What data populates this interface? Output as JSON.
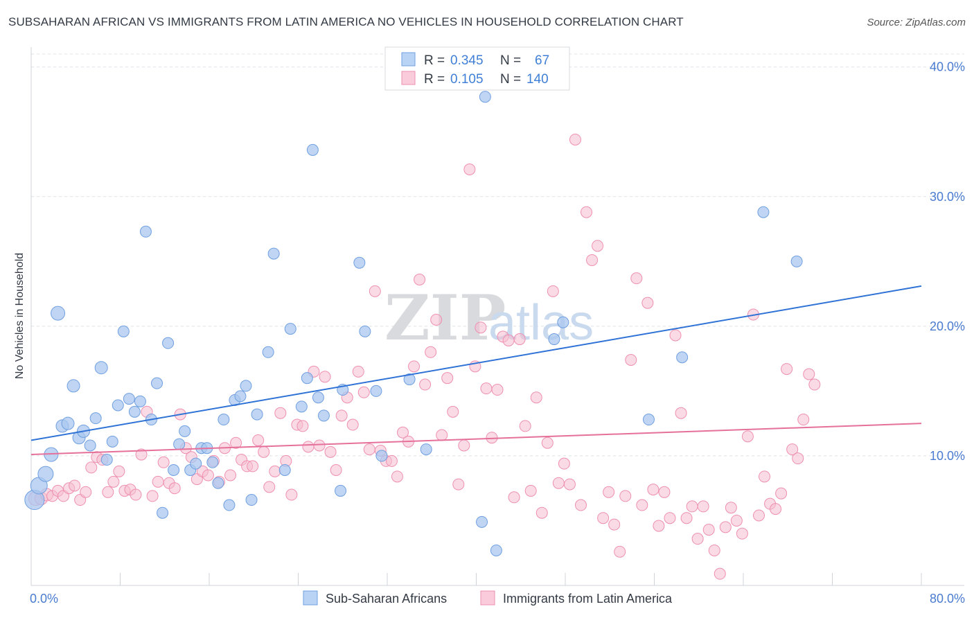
{
  "title": "SUBSAHARAN AFRICAN VS IMMIGRANTS FROM LATIN AMERICA NO VEHICLES IN HOUSEHOLD CORRELATION CHART",
  "source": "Source: ZipAtlas.com",
  "watermark": {
    "zip": "ZIP",
    "atlas": "atlas"
  },
  "legend": {
    "rows": [
      {
        "r_label": "R =",
        "r_value": "0.345",
        "n_label": "N =",
        "n_value": "67"
      },
      {
        "r_label": "R =",
        "r_value": "0.105",
        "n_label": "N =",
        "n_value": "140"
      }
    ]
  },
  "colors": {
    "series1_fill": "#a9c7ef",
    "series1_stroke": "#6f9fe0",
    "series1_line": "#2f72d6",
    "series2_fill": "#f6bdd0",
    "series2_stroke": "#ee8fb0",
    "series2_line": "#e5709a",
    "axis_tick_text": "#4a7bd0",
    "grid": "#dde1e8"
  },
  "chart_data": {
    "type": "scatter",
    "title": "SUBSAHARAN AFRICAN VS IMMIGRANTS FROM LATIN AMERICA NO VEHICLES IN HOUSEHOLD CORRELATION CHART",
    "xlabel": "",
    "ylabel": "No Vehicles in Household",
    "xlim": [
      0,
      80
    ],
    "ylim": [
      0,
      41
    ],
    "x_tick_labels": [
      "0.0%",
      "80.0%"
    ],
    "y_ticks": [
      10,
      20,
      30,
      40
    ],
    "y_tick_labels": [
      "10.0%",
      "20.0%",
      "30.0%",
      "40.0%"
    ],
    "grid": true,
    "legend_position": "top-center",
    "series": [
      {
        "name": "Sub-Saharan Africans",
        "R": 0.345,
        "N": 67,
        "trend": {
          "x": [
            0,
            80
          ],
          "y": [
            11.2,
            23.1
          ]
        },
        "points": [
          [
            0.3,
            6.6,
            14
          ],
          [
            0.7,
            7.7,
            12
          ],
          [
            1.3,
            8.6,
            11
          ],
          [
            1.8,
            10.1,
            10
          ],
          [
            2.4,
            21.0,
            10
          ],
          [
            2.8,
            12.3,
            9
          ],
          [
            3.3,
            12.5,
            9
          ],
          [
            3.8,
            15.4,
            9
          ],
          [
            4.3,
            11.4,
            9
          ],
          [
            4.7,
            11.9,
            9
          ],
          [
            5.3,
            10.8,
            8
          ],
          [
            5.8,
            12.9,
            8
          ],
          [
            6.3,
            16.8,
            9
          ],
          [
            6.8,
            9.7,
            8
          ],
          [
            7.3,
            11.1,
            8
          ],
          [
            7.8,
            13.9,
            8
          ],
          [
            8.3,
            19.6,
            8
          ],
          [
            8.8,
            14.4,
            8
          ],
          [
            9.3,
            13.4,
            8
          ],
          [
            9.8,
            14.2,
            8
          ],
          [
            10.3,
            27.3,
            8
          ],
          [
            10.8,
            12.8,
            8
          ],
          [
            11.3,
            15.6,
            8
          ],
          [
            11.8,
            5.6,
            8
          ],
          [
            12.3,
            18.7,
            8
          ],
          [
            12.8,
            8.9,
            8
          ],
          [
            13.3,
            10.9,
            8
          ],
          [
            13.8,
            11.9,
            8
          ],
          [
            14.3,
            8.9,
            8
          ],
          [
            14.8,
            9.4,
            8
          ],
          [
            15.3,
            10.6,
            8
          ],
          [
            15.8,
            10.6,
            8
          ],
          [
            16.3,
            9.5,
            8
          ],
          [
            16.8,
            7.9,
            8
          ],
          [
            17.3,
            12.8,
            8
          ],
          [
            17.8,
            6.2,
            8
          ],
          [
            18.3,
            14.3,
            8
          ],
          [
            18.8,
            14.6,
            8
          ],
          [
            19.3,
            15.4,
            8
          ],
          [
            19.8,
            6.6,
            8
          ],
          [
            20.3,
            13.2,
            8
          ],
          [
            21.3,
            18.0,
            8
          ],
          [
            21.8,
            25.6,
            8
          ],
          [
            22.8,
            8.9,
            8
          ],
          [
            23.3,
            19.8,
            8
          ],
          [
            24.3,
            13.8,
            8
          ],
          [
            24.8,
            16.0,
            8
          ],
          [
            25.3,
            33.6,
            8
          ],
          [
            25.8,
            14.5,
            8
          ],
          [
            26.3,
            13.1,
            8
          ],
          [
            27.8,
            7.3,
            8
          ],
          [
            28.0,
            15.1,
            8
          ],
          [
            29.5,
            24.9,
            8
          ],
          [
            30.0,
            19.6,
            8
          ],
          [
            31.0,
            15.0,
            8
          ],
          [
            31.5,
            10.0,
            8
          ],
          [
            34.0,
            15.9,
            8
          ],
          [
            35.5,
            10.5,
            8
          ],
          [
            40.5,
            4.9,
            8
          ],
          [
            40.8,
            37.7,
            8
          ],
          [
            41.8,
            2.7,
            8
          ],
          [
            47.0,
            19.0,
            8
          ],
          [
            47.8,
            20.3,
            8
          ],
          [
            55.5,
            12.8,
            8
          ],
          [
            58.5,
            17.6,
            8
          ],
          [
            65.8,
            28.8,
            8
          ],
          [
            68.8,
            25.0,
            8
          ]
        ]
      },
      {
        "name": "Immigrants from Latin America",
        "R": 0.105,
        "N": 140,
        "trend": {
          "x": [
            0,
            80
          ],
          "y": [
            10.1,
            12.5
          ]
        },
        "points": [
          [
            0.4,
            6.7,
            10
          ],
          [
            0.9,
            6.7,
            9
          ],
          [
            1.4,
            7.0,
            9
          ],
          [
            1.9,
            6.9,
            8
          ],
          [
            2.4,
            7.3,
            8
          ],
          [
            2.9,
            6.9,
            8
          ],
          [
            3.4,
            7.5,
            8
          ],
          [
            3.9,
            7.7,
            8
          ],
          [
            4.4,
            6.6,
            8
          ],
          [
            4.9,
            7.2,
            8
          ],
          [
            5.4,
            9.1,
            8
          ],
          [
            5.9,
            9.9,
            8
          ],
          [
            6.4,
            9.7,
            8
          ],
          [
            6.9,
            7.2,
            8
          ],
          [
            7.4,
            8.0,
            8
          ],
          [
            7.9,
            8.8,
            8
          ],
          [
            8.4,
            7.3,
            8
          ],
          [
            8.9,
            7.4,
            8
          ],
          [
            9.4,
            7.0,
            8
          ],
          [
            9.9,
            10.1,
            8
          ],
          [
            10.4,
            13.4,
            8
          ],
          [
            10.9,
            6.9,
            8
          ],
          [
            11.4,
            8.0,
            8
          ],
          [
            11.9,
            9.5,
            8
          ],
          [
            12.4,
            7.9,
            8
          ],
          [
            12.9,
            7.5,
            8
          ],
          [
            13.4,
            13.2,
            8
          ],
          [
            13.9,
            10.6,
            8
          ],
          [
            14.4,
            9.9,
            8
          ],
          [
            14.9,
            8.2,
            8
          ],
          [
            15.4,
            8.8,
            8
          ],
          [
            15.9,
            8.5,
            8
          ],
          [
            16.4,
            9.6,
            8
          ],
          [
            16.9,
            8.0,
            8
          ],
          [
            17.4,
            10.6,
            8
          ],
          [
            17.9,
            8.5,
            8
          ],
          [
            18.4,
            11.0,
            8
          ],
          [
            18.9,
            9.7,
            8
          ],
          [
            19.4,
            9.2,
            8
          ],
          [
            19.9,
            9.2,
            8
          ],
          [
            20.4,
            11.2,
            8
          ],
          [
            20.9,
            10.3,
            8
          ],
          [
            21.4,
            7.6,
            8
          ],
          [
            21.9,
            8.8,
            8
          ],
          [
            22.4,
            13.3,
            8
          ],
          [
            22.9,
            9.6,
            8
          ],
          [
            23.4,
            7.0,
            8
          ],
          [
            23.9,
            12.4,
            8
          ],
          [
            24.4,
            12.3,
            8
          ],
          [
            24.9,
            10.7,
            8
          ],
          [
            25.4,
            16.5,
            8
          ],
          [
            25.9,
            10.8,
            8
          ],
          [
            26.4,
            16.1,
            8
          ],
          [
            26.9,
            10.3,
            8
          ],
          [
            27.4,
            8.9,
            8
          ],
          [
            27.9,
            13.1,
            8
          ],
          [
            28.4,
            14.5,
            8
          ],
          [
            28.9,
            12.4,
            8
          ],
          [
            29.4,
            16.5,
            8
          ],
          [
            29.9,
            14.9,
            8
          ],
          [
            30.4,
            10.5,
            8
          ],
          [
            30.9,
            22.7,
            8
          ],
          [
            31.4,
            10.4,
            8
          ],
          [
            31.9,
            9.6,
            8
          ],
          [
            32.4,
            9.6,
            8
          ],
          [
            32.9,
            8.4,
            8
          ],
          [
            33.4,
            11.8,
            8
          ],
          [
            33.9,
            11.1,
            8
          ],
          [
            34.4,
            16.9,
            8
          ],
          [
            34.9,
            23.6,
            8
          ],
          [
            35.4,
            15.5,
            8
          ],
          [
            35.9,
            18.0,
            8
          ],
          [
            36.4,
            20.5,
            8
          ],
          [
            36.9,
            11.6,
            8
          ],
          [
            37.4,
            16.0,
            8
          ],
          [
            37.9,
            13.4,
            8
          ],
          [
            38.4,
            7.8,
            8
          ],
          [
            38.9,
            10.8,
            8
          ],
          [
            39.4,
            32.1,
            8
          ],
          [
            39.9,
            16.9,
            8
          ],
          [
            40.4,
            19.9,
            8
          ],
          [
            40.9,
            15.2,
            8
          ],
          [
            41.4,
            11.4,
            8
          ],
          [
            41.9,
            15.1,
            8
          ],
          [
            42.4,
            19.2,
            8
          ],
          [
            42.9,
            18.9,
            8
          ],
          [
            43.4,
            6.8,
            8
          ],
          [
            43.9,
            19.0,
            8
          ],
          [
            44.4,
            12.3,
            8
          ],
          [
            44.9,
            7.3,
            8
          ],
          [
            45.4,
            14.5,
            8
          ],
          [
            45.9,
            5.6,
            8
          ],
          [
            46.4,
            11.0,
            8
          ],
          [
            46.9,
            22.7,
            8
          ],
          [
            47.4,
            7.9,
            8
          ],
          [
            47.9,
            9.4,
            8
          ],
          [
            48.4,
            7.8,
            8
          ],
          [
            48.9,
            34.4,
            8
          ],
          [
            49.4,
            6.2,
            8
          ],
          [
            49.9,
            28.8,
            8
          ],
          [
            50.4,
            25.1,
            8
          ],
          [
            50.9,
            26.2,
            8
          ],
          [
            51.4,
            5.2,
            8
          ],
          [
            51.9,
            7.2,
            8
          ],
          [
            52.4,
            4.7,
            8
          ],
          [
            52.9,
            2.6,
            8
          ],
          [
            53.4,
            6.9,
            8
          ],
          [
            53.9,
            17.4,
            8
          ],
          [
            54.4,
            23.7,
            8
          ],
          [
            54.9,
            6.2,
            8
          ],
          [
            55.4,
            21.8,
            8
          ],
          [
            55.9,
            7.4,
            8
          ],
          [
            56.4,
            4.6,
            8
          ],
          [
            56.9,
            7.2,
            8
          ],
          [
            57.4,
            5.2,
            8
          ],
          [
            57.9,
            19.3,
            8
          ],
          [
            58.4,
            13.3,
            8
          ],
          [
            58.9,
            5.2,
            8
          ],
          [
            59.4,
            6.1,
            8
          ],
          [
            59.9,
            3.6,
            8
          ],
          [
            60.4,
            6.1,
            8
          ],
          [
            60.9,
            4.3,
            8
          ],
          [
            61.4,
            2.7,
            8
          ],
          [
            61.9,
            0.9,
            8
          ],
          [
            62.4,
            4.5,
            8
          ],
          [
            62.9,
            6.0,
            8
          ],
          [
            63.4,
            5.0,
            8
          ],
          [
            63.9,
            4.0,
            8
          ],
          [
            64.4,
            11.5,
            8
          ],
          [
            64.9,
            20.9,
            8
          ],
          [
            65.4,
            5.4,
            8
          ],
          [
            65.9,
            8.4,
            8
          ],
          [
            66.4,
            6.3,
            8
          ],
          [
            66.9,
            5.9,
            8
          ],
          [
            67.4,
            7.1,
            8
          ],
          [
            67.9,
            16.7,
            8
          ],
          [
            68.4,
            10.5,
            8
          ],
          [
            68.9,
            9.8,
            8
          ],
          [
            69.4,
            12.8,
            8
          ],
          [
            69.9,
            16.3,
            8
          ],
          [
            70.4,
            15.5,
            8
          ]
        ]
      }
    ]
  },
  "bottom_legend": [
    {
      "label": "Sub-Saharan Africans"
    },
    {
      "label": "Immigrants from Latin America"
    }
  ]
}
